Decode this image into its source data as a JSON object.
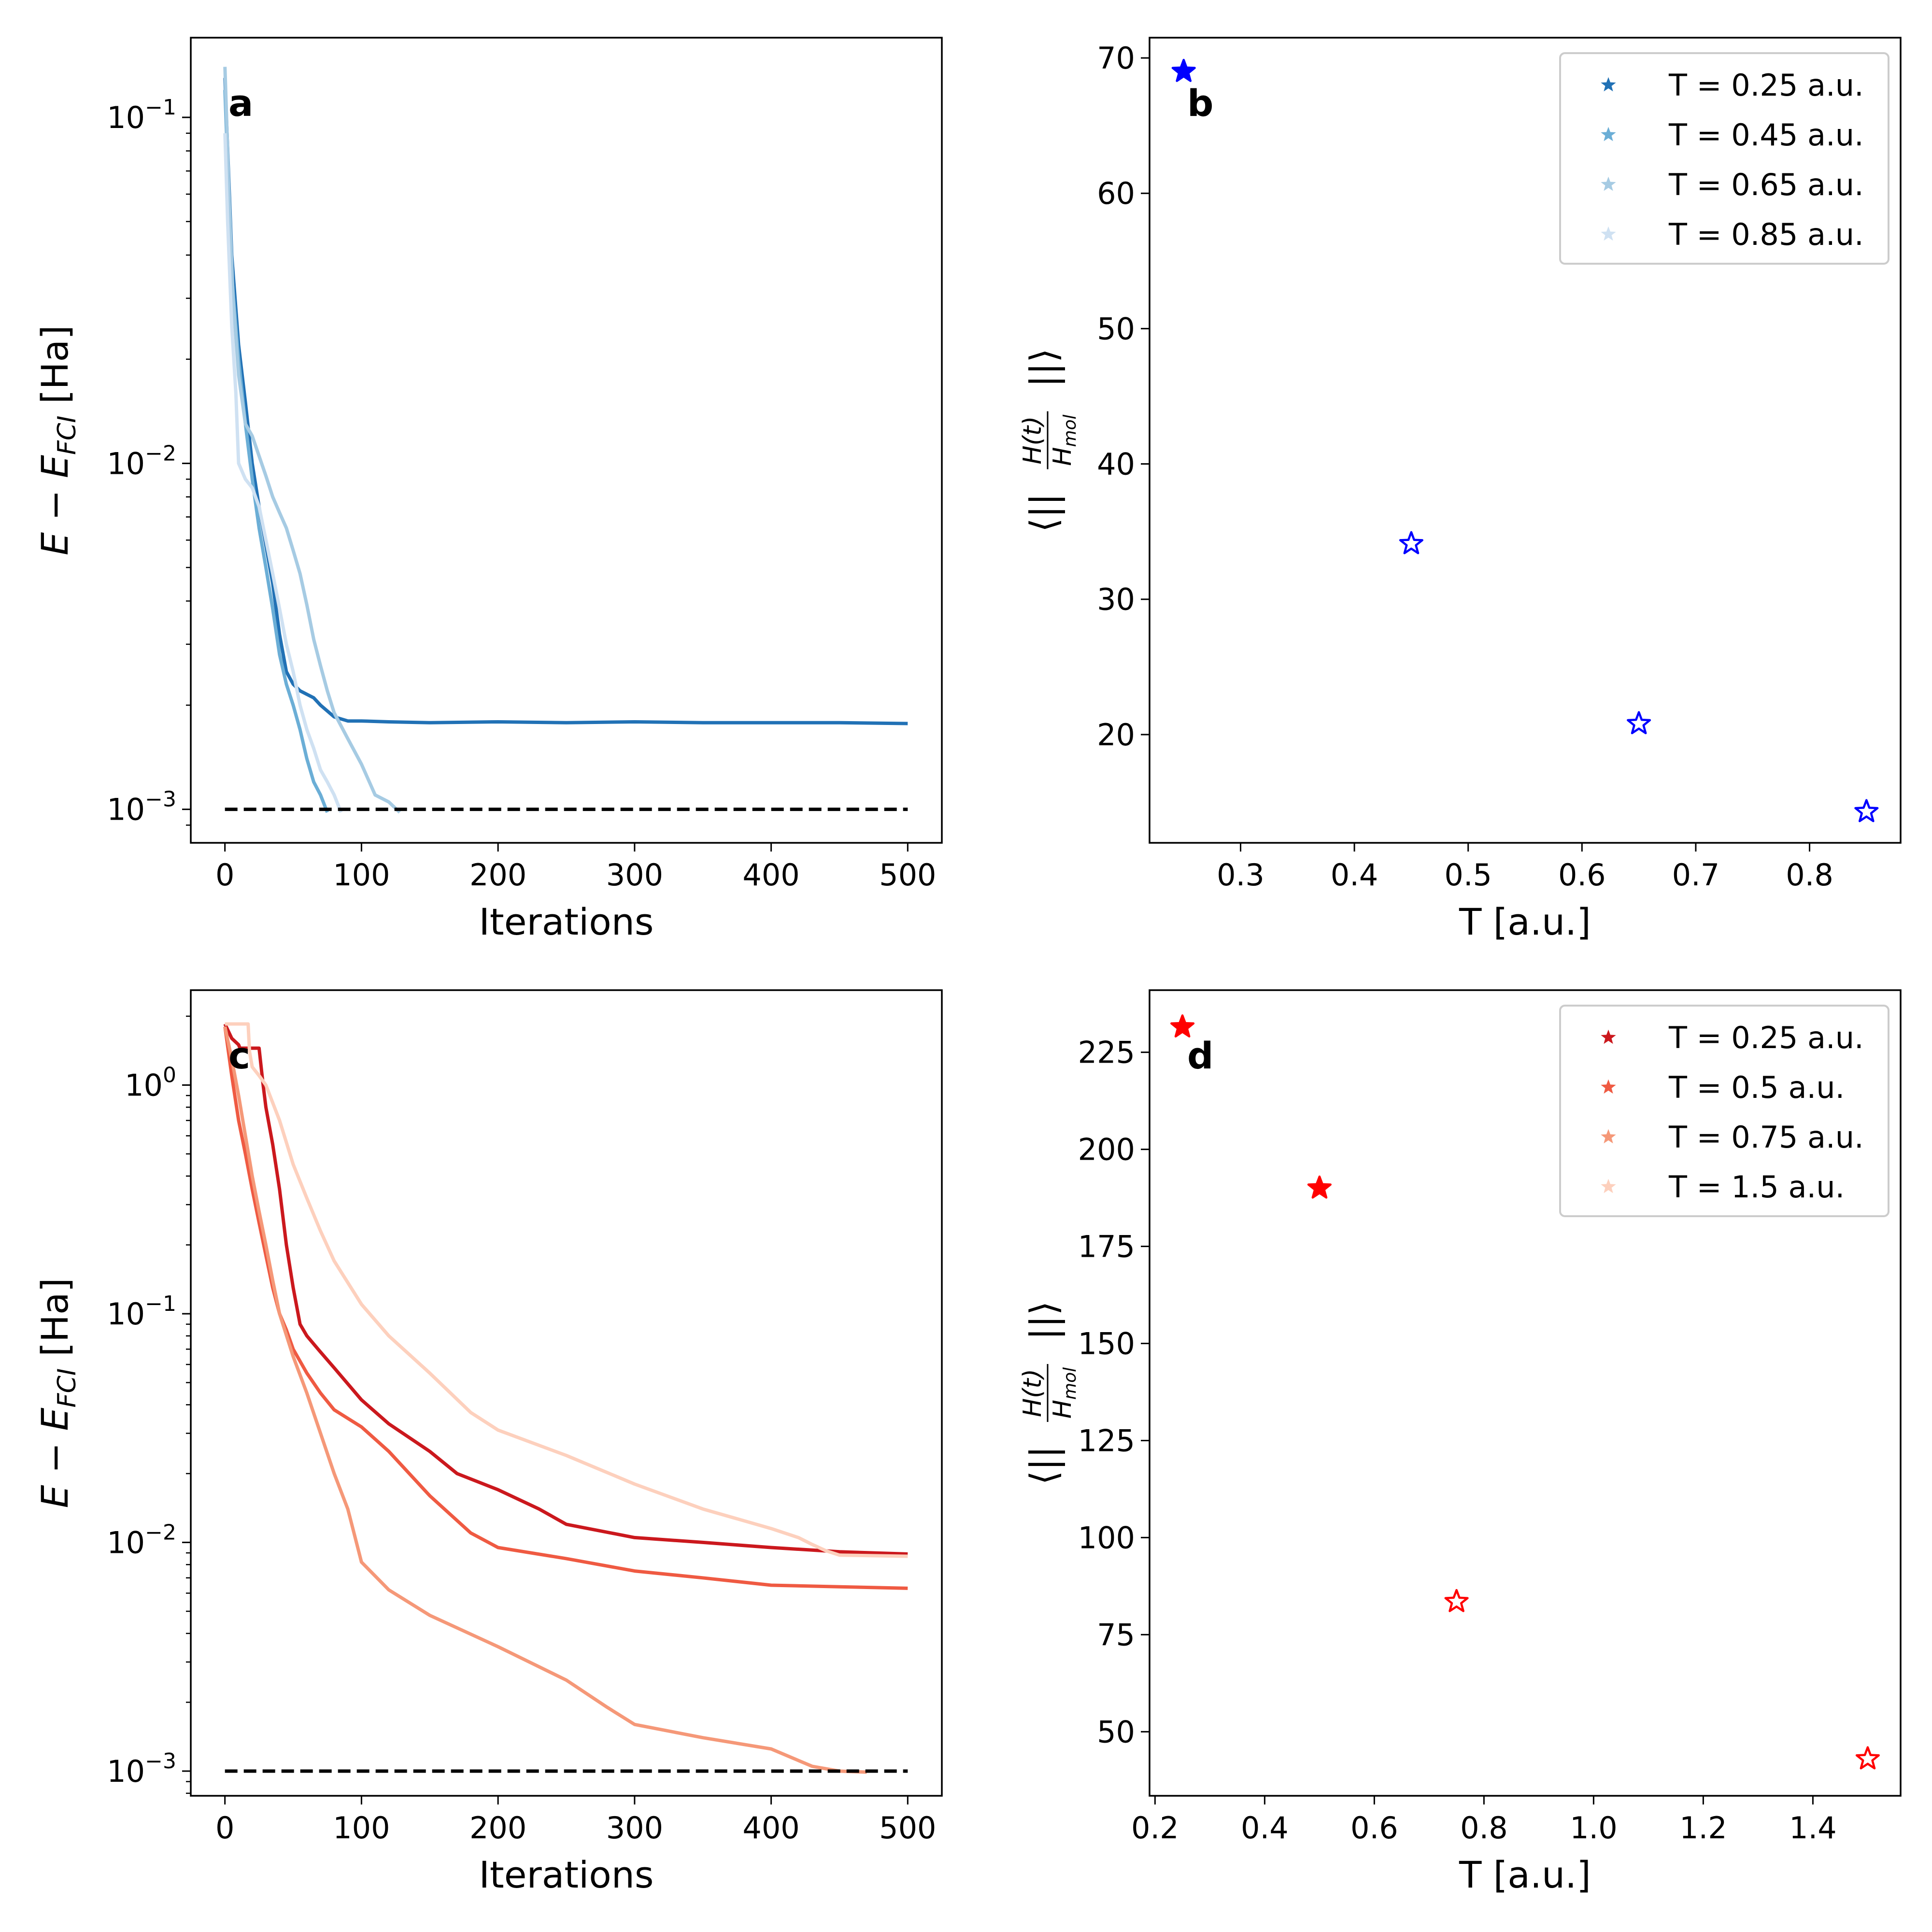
{
  "figure": {
    "panel_letters": [
      "a",
      "b",
      "c",
      "d"
    ]
  },
  "chart_data": [
    {
      "panel": "a",
      "type": "line",
      "xlabel": "Iterations",
      "ylabel": "E − E_FCI [Ha]",
      "ylabel_parts": {
        "main": "E − E",
        "sub": "FCI",
        "unit": "[Ha]"
      },
      "yscale": "log",
      "xlim": [
        -25,
        525
      ],
      "ylim": [
        0.0008,
        0.17
      ],
      "xticks": [
        0,
        100,
        200,
        300,
        400,
        500
      ],
      "xtick_labels": [
        "0",
        "100",
        "200",
        "300",
        "400",
        "500"
      ],
      "yticks": [
        0.001,
        0.01,
        0.1
      ],
      "ytick_labels": [
        {
          "base": "10",
          "exp": "−3"
        },
        {
          "base": "10",
          "exp": "−2"
        },
        {
          "base": "10",
          "exp": "−1"
        }
      ],
      "threshold": 0.001,
      "series": [
        {
          "name": "T = 0.25 a.u.",
          "color": "#2171b5",
          "x": [
            0,
            5,
            10,
            15,
            20,
            25,
            30,
            35,
            40,
            45,
            50,
            55,
            60,
            65,
            70,
            80,
            90,
            100,
            120,
            150,
            200,
            250,
            300,
            350,
            400,
            450,
            500
          ],
          "y": [
            0.13,
            0.04,
            0.022,
            0.015,
            0.01,
            0.0075,
            0.0058,
            0.0045,
            0.0032,
            0.0025,
            0.0023,
            0.0022,
            0.00215,
            0.0021,
            0.002,
            0.00185,
            0.0018,
            0.0018,
            0.00179,
            0.00178,
            0.00179,
            0.00178,
            0.00179,
            0.00178,
            0.00178,
            0.00178,
            0.00177
          ]
        },
        {
          "name": "T = 0.45 a.u.",
          "color": "#6baed6",
          "x": [
            0,
            5,
            10,
            15,
            20,
            25,
            30,
            35,
            40,
            45,
            50,
            55,
            60,
            65,
            70,
            75
          ],
          "y": [
            0.12,
            0.035,
            0.02,
            0.013,
            0.009,
            0.0065,
            0.005,
            0.0038,
            0.0028,
            0.0023,
            0.002,
            0.0017,
            0.0014,
            0.0012,
            0.0011,
            0.00098
          ]
        },
        {
          "name": "T = 0.65 a.u.",
          "color": "#a6cbe3",
          "x": [
            0,
            3,
            6,
            10,
            15,
            20,
            25,
            30,
            35,
            40,
            45,
            50,
            55,
            60,
            65,
            70,
            75,
            80,
            90,
            100,
            110,
            120,
            128
          ],
          "y": [
            0.14,
            0.06,
            0.03,
            0.018,
            0.013,
            0.012,
            0.0105,
            0.0092,
            0.008,
            0.0072,
            0.0065,
            0.0056,
            0.0048,
            0.0039,
            0.0031,
            0.0026,
            0.0022,
            0.0019,
            0.0016,
            0.00135,
            0.0011,
            0.00105,
            0.00098
          ]
        },
        {
          "name": "T = 0.85 a.u.",
          "color": "#cfe1f2",
          "x": [
            0,
            2,
            5,
            8,
            10,
            15,
            20,
            25,
            30,
            35,
            40,
            45,
            50,
            55,
            60,
            65,
            70,
            75,
            80,
            85
          ],
          "y": [
            0.09,
            0.05,
            0.025,
            0.016,
            0.01,
            0.009,
            0.0085,
            0.0075,
            0.006,
            0.0048,
            0.0038,
            0.003,
            0.0025,
            0.002,
            0.0017,
            0.0015,
            0.0013,
            0.0012,
            0.0011,
            0.00098
          ]
        }
      ]
    },
    {
      "panel": "b",
      "type": "scatter",
      "xlabel": "T [a.u.]",
      "ylabel": "⟨||H(t)/H_mol||⟩",
      "ylabel_parts": {
        "open": "⟨||",
        "num": "H(t)",
        "den_main": "H",
        "den_sub": "mol",
        "close": "||⟩"
      },
      "xlim": [
        0.22,
        0.88
      ],
      "ylim": [
        12,
        71.5
      ],
      "xticks": [
        0.3,
        0.4,
        0.5,
        0.6,
        0.7,
        0.8
      ],
      "xtick_labels": [
        "0.3",
        "0.4",
        "0.5",
        "0.6",
        "0.7",
        "0.8"
      ],
      "yticks": [
        20,
        30,
        40,
        50,
        60,
        70
      ],
      "ytick_labels": [
        "20",
        "30",
        "40",
        "50",
        "60",
        "70"
      ],
      "marker_color": "#0000ff",
      "points": [
        {
          "x": 0.25,
          "y": 69.0,
          "filled": true
        },
        {
          "x": 0.45,
          "y": 34.1,
          "filled": false
        },
        {
          "x": 0.65,
          "y": 20.8,
          "filled": false
        },
        {
          "x": 0.85,
          "y": 14.3,
          "filled": false
        }
      ],
      "legend": [
        {
          "label": "T = 0.25 a.u.",
          "color": "#2171b5"
        },
        {
          "label": "T = 0.45 a.u.",
          "color": "#6baed6"
        },
        {
          "label": "T = 0.65 a.u.",
          "color": "#a6cbe3"
        },
        {
          "label": "T = 0.85 a.u.",
          "color": "#cfe1f2"
        }
      ]
    },
    {
      "panel": "c",
      "type": "line",
      "xlabel": "Iterations",
      "ylabel": "E − E_FCI [Ha]",
      "ylabel_parts": {
        "main": "E − E",
        "sub": "FCI",
        "unit": "[Ha]"
      },
      "yscale": "log",
      "xlim": [
        -25,
        525
      ],
      "ylim": [
        0.00078,
        2.6
      ],
      "xticks": [
        0,
        100,
        200,
        300,
        400,
        500
      ],
      "xtick_labels": [
        "0",
        "100",
        "200",
        "300",
        "400",
        "500"
      ],
      "yticks": [
        0.001,
        0.01,
        0.1,
        1
      ],
      "ytick_labels": [
        {
          "base": "10",
          "exp": "−3"
        },
        {
          "base": "10",
          "exp": "−2"
        },
        {
          "base": "10",
          "exp": "−1"
        },
        {
          "base": "10",
          "exp": "0"
        }
      ],
      "threshold": 0.001,
      "series": [
        {
          "name": "T = 0.25 a.u.",
          "color": "#cb181d",
          "x": [
            0,
            5,
            10,
            11,
            25,
            28,
            30,
            35,
            40,
            45,
            50,
            55,
            60,
            70,
            80,
            100,
            120,
            150,
            170,
            200,
            230,
            250,
            300,
            350,
            400,
            450,
            500
          ],
          "y": [
            1.85,
            1.6,
            1.5,
            1.45,
            1.45,
            1.0,
            0.8,
            0.55,
            0.35,
            0.2,
            0.13,
            0.09,
            0.08,
            0.068,
            0.058,
            0.042,
            0.033,
            0.025,
            0.02,
            0.017,
            0.014,
            0.012,
            0.0105,
            0.01,
            0.0095,
            0.0091,
            0.0089
          ]
        },
        {
          "name": "T = 0.5 a.u.",
          "color": "#ef5a42",
          "x": [
            0,
            5,
            10,
            15,
            20,
            25,
            30,
            35,
            40,
            45,
            50,
            60,
            70,
            80,
            100,
            120,
            150,
            180,
            200,
            250,
            300,
            350,
            400,
            450,
            500
          ],
          "y": [
            1.8,
            1.1,
            0.7,
            0.5,
            0.35,
            0.25,
            0.18,
            0.13,
            0.1,
            0.085,
            0.07,
            0.055,
            0.045,
            0.038,
            0.032,
            0.025,
            0.016,
            0.011,
            0.0095,
            0.0085,
            0.0075,
            0.007,
            0.0065,
            0.0064,
            0.0063
          ]
        },
        {
          "name": "T = 0.75 a.u.",
          "color": "#f59878",
          "x": [
            0,
            5,
            10,
            15,
            20,
            25,
            30,
            35,
            40,
            50,
            60,
            70,
            80,
            90,
            100,
            120,
            150,
            200,
            250,
            280,
            300,
            350,
            400,
            430,
            450,
            470
          ],
          "y": [
            1.8,
            1.3,
            0.9,
            0.6,
            0.4,
            0.28,
            0.2,
            0.14,
            0.1,
            0.065,
            0.045,
            0.03,
            0.02,
            0.014,
            0.0082,
            0.0062,
            0.0048,
            0.0035,
            0.0025,
            0.0019,
            0.0016,
            0.0014,
            0.00125,
            0.00105,
            0.001,
            0.00099
          ]
        },
        {
          "name": "T = 1.5 a.u.",
          "color": "#fdd0bd",
          "x": [
            0,
            17,
            18,
            20,
            25,
            30,
            40,
            50,
            60,
            70,
            80,
            100,
            120,
            150,
            180,
            200,
            250,
            300,
            350,
            400,
            420,
            430,
            440,
            450,
            500
          ],
          "y": [
            1.85,
            1.85,
            1.4,
            1.2,
            1.1,
            1.0,
            0.7,
            0.45,
            0.32,
            0.23,
            0.17,
            0.11,
            0.08,
            0.055,
            0.037,
            0.031,
            0.024,
            0.018,
            0.014,
            0.0115,
            0.0105,
            0.0098,
            0.0092,
            0.0088,
            0.0087
          ]
        }
      ]
    },
    {
      "panel": "d",
      "type": "scatter",
      "xlabel": "T [a.u.]",
      "ylabel": "⟨||H(t)/H_mol||⟩",
      "ylabel_parts": {
        "open": "⟨||",
        "num": "H(t)",
        "den_main": "H",
        "den_sub": "mol",
        "close": "||⟩"
      },
      "xlim": [
        0.19,
        1.56
      ],
      "ylim": [
        33.5,
        241
      ],
      "xticks": [
        0.2,
        0.4,
        0.6,
        0.8,
        1.0,
        1.2,
        1.4
      ],
      "xtick_labels": [
        "0.2",
        "0.4",
        "0.6",
        "0.8",
        "1.0",
        "1.2",
        "1.4"
      ],
      "yticks": [
        50,
        75,
        100,
        125,
        150,
        175,
        200,
        225
      ],
      "ytick_labels": [
        "50",
        "75",
        "100",
        "125",
        "150",
        "175",
        "200",
        "225"
      ],
      "marker_color": "#ff0000",
      "points": [
        {
          "x": 0.25,
          "y": 231.5,
          "filled": true
        },
        {
          "x": 0.5,
          "y": 190.0,
          "filled": true
        },
        {
          "x": 0.75,
          "y": 83.5,
          "filled": false
        },
        {
          "x": 1.5,
          "y": 43.0,
          "filled": false
        }
      ],
      "legend": [
        {
          "label": "T = 0.25 a.u.",
          "color": "#cb181d"
        },
        {
          "label": "T = 0.5 a.u.",
          "color": "#ef5a42"
        },
        {
          "label": "T = 0.75 a.u.",
          "color": "#f59878"
        },
        {
          "label": "T = 1.5 a.u.",
          "color": "#fdd0bd"
        }
      ]
    }
  ]
}
